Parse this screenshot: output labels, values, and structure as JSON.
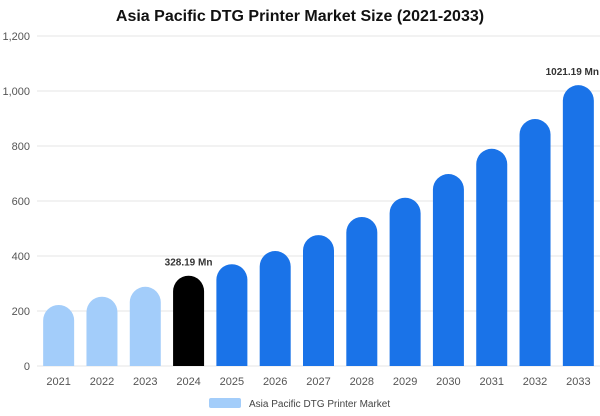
{
  "chart_data": {
    "type": "bar",
    "title": "Asia Pacific DTG Printer Market Size (2021-2033)",
    "categories": [
      "2021",
      "2022",
      "2023",
      "2024",
      "2025",
      "2026",
      "2027",
      "2028",
      "2029",
      "2030",
      "2031",
      "2032",
      "2033"
    ],
    "series": [
      {
        "name": "Asia Pacific DTG Printer Market",
        "values": [
          222,
          252,
          288,
          328.19,
          370,
          418,
          476,
          542,
          612,
          698,
          790,
          898,
          1021.19
        ]
      }
    ],
    "ylim": [
      0,
      1200
    ],
    "yticks": [
      "0",
      "200",
      "400",
      "600",
      "800",
      "1,000",
      "1,200"
    ],
    "ytick_values": [
      0,
      200,
      400,
      600,
      800,
      1000,
      1200
    ],
    "annotations": [
      {
        "category": "2024",
        "text": "328.19 Mn"
      },
      {
        "category": "2033",
        "text": "1021.19 Mn"
      }
    ],
    "colors": {
      "historical": "#a3cdfa",
      "base_year": "#000000",
      "forecast": "#1a73e8",
      "legend_swatch": "#a3cdfa",
      "grid": "#e6e6e6"
    },
    "bar_colors_by_category": [
      "historical",
      "historical",
      "historical",
      "base_year",
      "forecast",
      "forecast",
      "forecast",
      "forecast",
      "forecast",
      "forecast",
      "forecast",
      "forecast",
      "forecast"
    ],
    "grid": true,
    "legend_position": "bottom-center"
  }
}
